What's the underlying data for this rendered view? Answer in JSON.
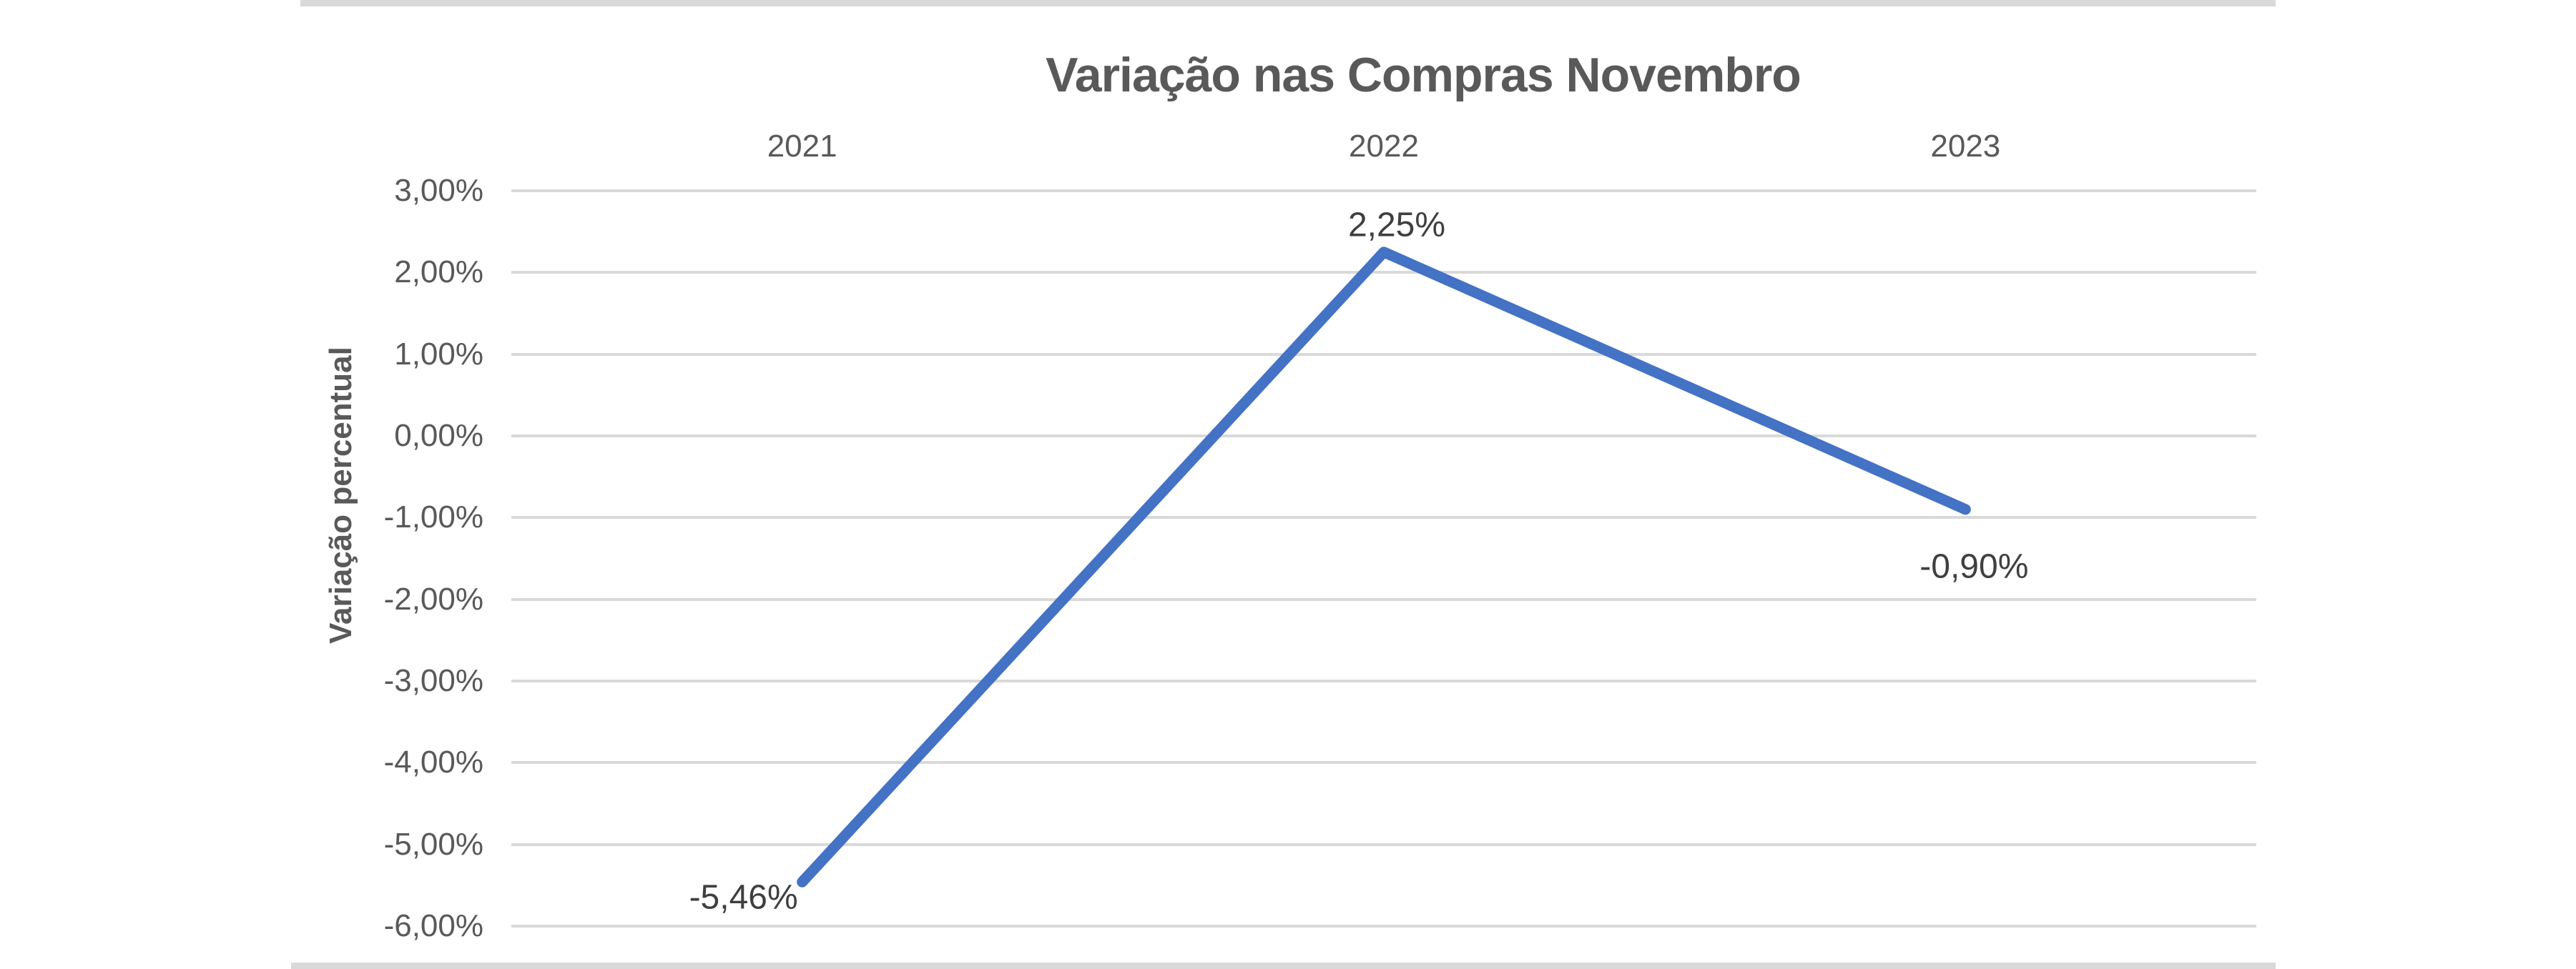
{
  "chart": {
    "title": "Variação nas Compras Novembro",
    "y_axis_title": "Variação percentual"
  },
  "chart_data": {
    "type": "line",
    "title": "Variação nas Compras Novembro",
    "categories": [
      "2021",
      "2022",
      "2023"
    ],
    "values": [
      -5.46,
      2.25,
      -0.9
    ],
    "data_labels": [
      "-5,46%",
      "2,25%",
      "-0,90%"
    ],
    "xlabel": "",
    "ylabel": "Variação percentual",
    "ylim": [
      -6,
      3
    ],
    "y_tick_step": 1,
    "y_tick_labels": [
      "3,00%",
      "2,00%",
      "1,00%",
      "0,00%",
      "-1,00%",
      "-2,00%",
      "-3,00%",
      "-4,00%",
      "-5,00%",
      "-6,00%"
    ],
    "x_axis_labels_position": "top",
    "grid": "horizontal-only",
    "legend": "none",
    "line_color": "#4472C4",
    "gridline_color": "#D9D9D9",
    "axis_text_color": "#595959",
    "data_label_color": "#3F3F3F",
    "edge_bar_color": "#D9D9D9"
  }
}
